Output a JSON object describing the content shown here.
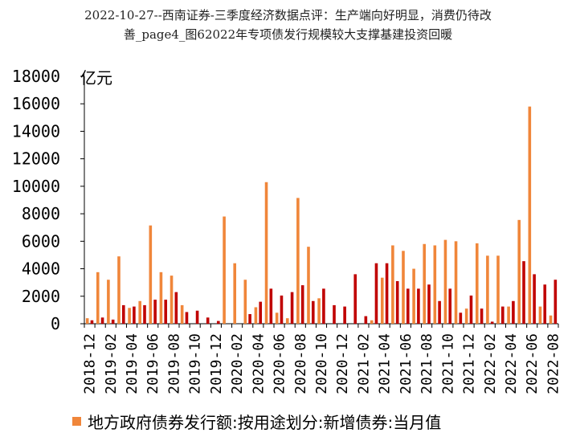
{
  "title": {
    "line1": "2022-10-27--西南证券-三季度经济数据点评：生产端向好明显，消费仍待改",
    "line2": "善_page4_图62022年专项债发行规模较大支撑基建投资回暖"
  },
  "chart_data": {
    "type": "bar",
    "unit_label": "亿元",
    "ylim": [
      0,
      18000
    ],
    "yticks": [
      0,
      2000,
      4000,
      6000,
      8000,
      10000,
      12000,
      14000,
      16000,
      18000
    ],
    "grid": false,
    "legend_position": "bottom",
    "colors": {
      "series1": "#F0863A",
      "series2": "#C00000"
    },
    "categories": [
      "2018-12",
      "2019-01",
      "2019-02",
      "2019-03",
      "2019-04",
      "2019-05",
      "2019-06",
      "2019-07",
      "2019-08",
      "2019-09",
      "2019-10",
      "2019-11",
      "2019-12",
      "2020-01",
      "2020-02",
      "2020-03",
      "2020-04",
      "2020-05",
      "2020-06",
      "2020-07",
      "2020-08",
      "2020-09",
      "2020-10",
      "2020-11",
      "2020-12",
      "2021-01",
      "2021-02",
      "2021-03",
      "2021-04",
      "2021-05",
      "2021-06",
      "2021-07",
      "2021-08",
      "2021-09",
      "2021-10",
      "2021-11",
      "2021-12",
      "2022-01",
      "2022-02",
      "2022-03",
      "2022-04",
      "2022-05",
      "2022-06",
      "2022-07",
      "2022-08"
    ],
    "xtick_labels": [
      "2018-12",
      "2019-02",
      "2019-04",
      "2019-06",
      "2019-08",
      "2019-10",
      "2019-12",
      "2020-02",
      "2020-04",
      "2020-06",
      "2020-08",
      "2020-10",
      "2020-12",
      "2021-02",
      "2021-04",
      "2021-06",
      "2021-08",
      "2021-10",
      "2021-12",
      "2022-02",
      "2022-04",
      "2022-06",
      "2022-08"
    ],
    "series": [
      {
        "name": "地方政府债券发行额:按用途划分:新增债券:当月值",
        "values": [
          400,
          3750,
          3200,
          4900,
          1150,
          1650,
          7150,
          3750,
          3500,
          1350,
          0,
          0,
          0,
          7800,
          4400,
          3200,
          1200,
          10300,
          800,
          400,
          9150,
          5600,
          1850,
          0,
          0,
          0,
          0,
          250,
          3350,
          5700,
          5300,
          4000,
          5800,
          5700,
          6100,
          6000,
          1100,
          5850,
          4950,
          4950,
          1250,
          7550,
          15800,
          1250,
          600
        ]
      },
      {
        "values": [
          250,
          450,
          300,
          1350,
          1250,
          1350,
          1750,
          1750,
          2300,
          850,
          950,
          450,
          200,
          0,
          0,
          700,
          1600,
          2550,
          2050,
          2300,
          2800,
          1650,
          2550,
          1350,
          1250,
          3600,
          550,
          4400,
          4400,
          3100,
          2550,
          2550,
          2850,
          1650,
          2550,
          800,
          2050,
          1100,
          150,
          1250,
          1650,
          4550,
          3600,
          2850,
          3200
        ]
      }
    ]
  }
}
